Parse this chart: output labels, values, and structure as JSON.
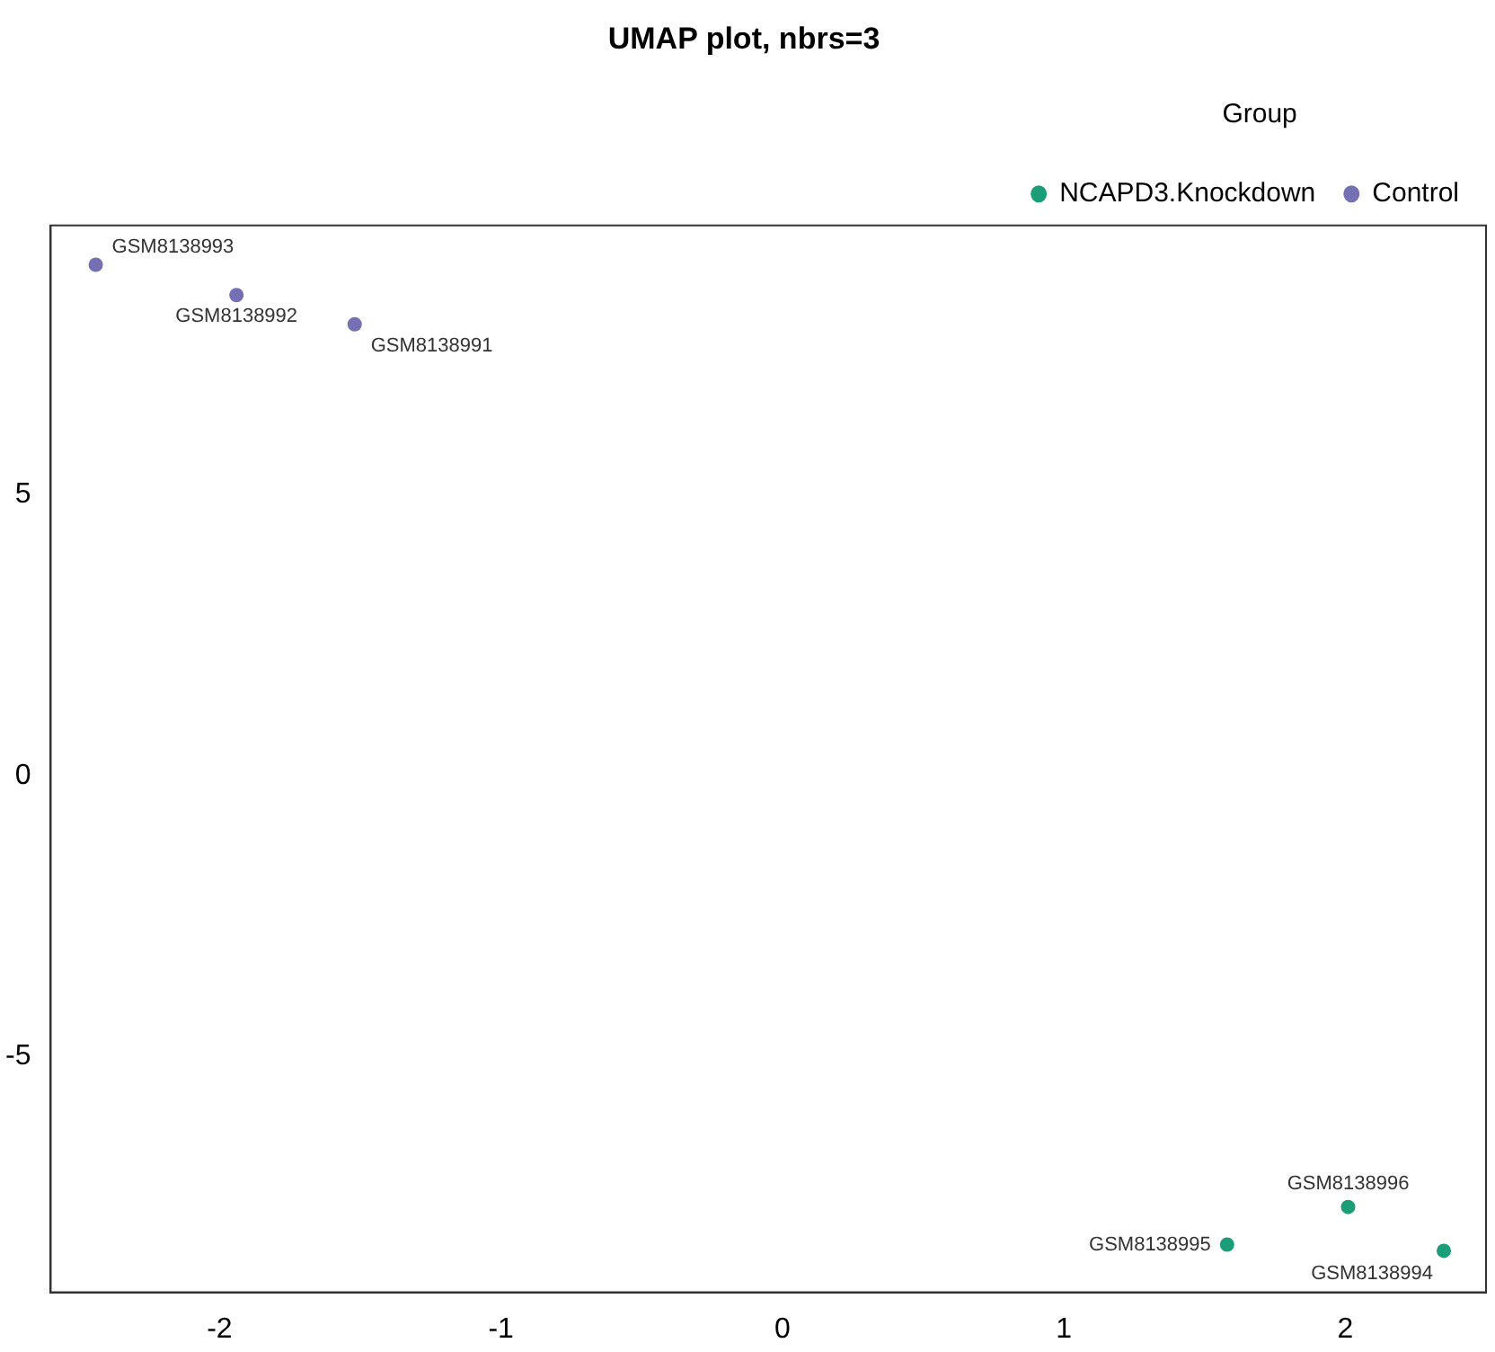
{
  "chart_data": {
    "type": "scatter",
    "title": "UMAP plot, nbrs=3",
    "legend_title": "Group",
    "legend": "top right",
    "marker": "circle",
    "grid": false,
    "xlim": [
      -2.6,
      2.5
    ],
    "xticks": [
      -2,
      -1,
      0,
      1,
      2
    ],
    "ylim": [
      -9.2,
      9.8
    ],
    "yticks": [
      -5,
      0,
      5
    ],
    "series": [
      {
        "name": "NCAPD3.Knockdown",
        "color": "#1b9e77",
        "x": [
          2.35,
          1.58,
          2.01
        ],
        "values": [
          -8.46,
          -8.35,
          -7.68
        ]
      },
      {
        "name": "Control",
        "color": "#7570b3",
        "x": [
          -1.52,
          -1.94,
          -2.44
        ],
        "values": [
          8.04,
          8.56,
          9.1
        ]
      }
    ],
    "annotations": [
      {
        "text": "GSM8138994",
        "x": 2.35,
        "y": -8.46
      },
      {
        "text": "GSM8138995",
        "x": 1.58,
        "y": -8.35
      },
      {
        "text": "GSM8138996",
        "x": 2.01,
        "y": -7.68
      },
      {
        "text": "GSM8138991",
        "x": -1.52,
        "y": 8.04
      },
      {
        "text": "GSM8138992",
        "x": -1.94,
        "y": 8.56
      },
      {
        "text": "GSM8138993",
        "x": -2.44,
        "y": 9.1
      }
    ]
  }
}
